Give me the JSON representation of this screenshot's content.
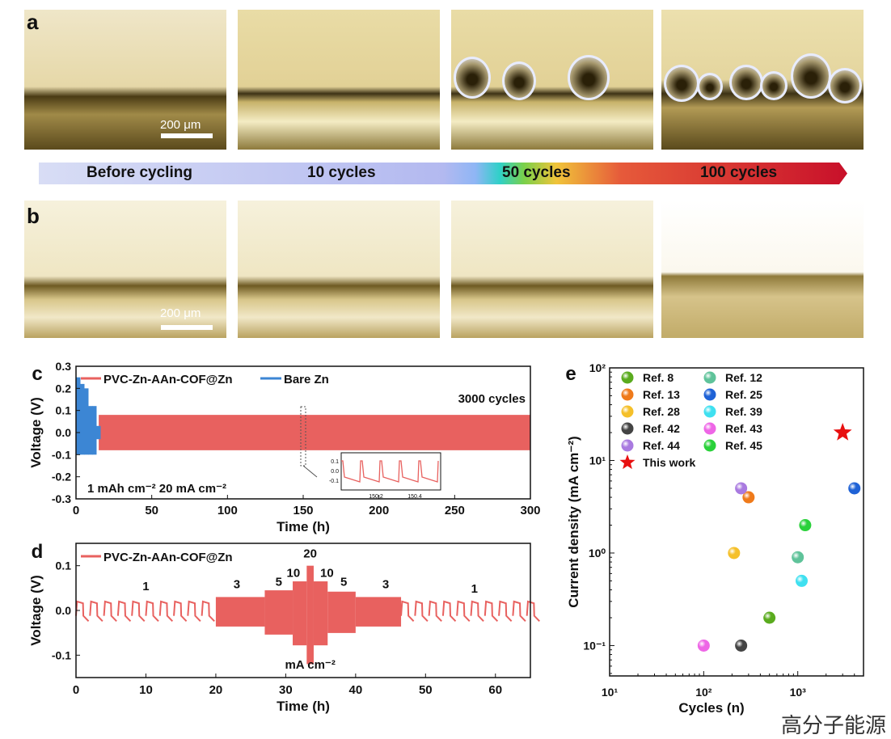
{
  "panel_a": {
    "label": "a",
    "scale": "200 μm"
  },
  "panel_b": {
    "label": "b",
    "scale": "200 μm"
  },
  "arrow": {
    "stages": [
      "Before cycling",
      "10 cycles",
      "50 cycles",
      "100 cycles"
    ]
  },
  "watermark": "高分子能源",
  "chart_data": [
    {
      "panel": "c",
      "type": "line",
      "xlabel": "Time (h)",
      "ylabel": "Voltage (V)",
      "xlim": [
        0,
        300
      ],
      "ylim": [
        -0.3,
        0.3
      ],
      "xticks": [
        "0",
        "50",
        "100",
        "150",
        "200",
        "250",
        "300"
      ],
      "yticks": [
        "-0.3",
        "-0.2",
        "-0.1",
        "0.0",
        "0.1",
        "0.2",
        "0.3"
      ],
      "legend_position": "top-left",
      "series": [
        {
          "name": "PVC-Zn-AAn-COF@Zn",
          "color": "#e8615f",
          "x_range": [
            15,
            300
          ],
          "amplitude": 0.08
        },
        {
          "name": "Bare Zn",
          "color": "#3c86d4",
          "x_range": [
            0,
            16
          ],
          "peaks": [
            0.25,
            0.22,
            0.2,
            0.12,
            0.12,
            0.03
          ]
        }
      ],
      "annotations": [
        "3000 cycles",
        "1 mAh cm⁻²  20 mA cm⁻²"
      ],
      "inset": {
        "yticks": [
          "0.1",
          "0.0",
          "-0.1"
        ],
        "xticks": [
          "150.2",
          "150.4"
        ]
      }
    },
    {
      "panel": "d",
      "type": "line",
      "xlabel": "Time (h)",
      "ylabel": "Voltage (V)",
      "xlim": [
        0,
        65
      ],
      "ylim": [
        -0.15,
        0.15
      ],
      "xticks": [
        "0",
        "10",
        "20",
        "30",
        "40",
        "50",
        "60"
      ],
      "yticks": [
        "-0.1",
        "0.0",
        "0.1"
      ],
      "legend_position": "top-left",
      "series": [
        {
          "name": "PVC-Zn-AAn-COF@Zn",
          "color": "#e8615f"
        }
      ],
      "segments": [
        {
          "start": 0,
          "end": 20,
          "current": "1",
          "amp": 0.02
        },
        {
          "start": 20,
          "end": 27,
          "current": "3",
          "amp": 0.03
        },
        {
          "start": 27,
          "end": 31,
          "current": "5",
          "amp": 0.045
        },
        {
          "start": 31,
          "end": 33,
          "current": "10",
          "amp": 0.065
        },
        {
          "start": 33,
          "end": 34,
          "current": "20",
          "amp": 0.1
        },
        {
          "start": 34,
          "end": 36,
          "current": "10",
          "amp": 0.065
        },
        {
          "start": 36,
          "end": 40,
          "current": "5",
          "amp": 0.042
        },
        {
          "start": 40,
          "end": 46.5,
          "current": "3",
          "amp": 0.03
        },
        {
          "start": 46.5,
          "end": 65,
          "current": "1",
          "amp": 0.02
        }
      ],
      "unit_label": "mA cm⁻²"
    },
    {
      "panel": "e",
      "type": "scatter",
      "xlabel": "Cycles (n)",
      "ylabel": "Current density (mA cm⁻²)",
      "xscale": "log",
      "yscale": "log",
      "xlim": [
        10,
        5000
      ],
      "ylim": [
        0.047,
        100
      ],
      "xticks": [
        "10¹",
        "10²",
        "10³"
      ],
      "yticks": [
        "10⁻¹",
        "10⁰",
        "10¹",
        "10²"
      ],
      "legend_position": "top-left",
      "points": [
        {
          "name": "Ref. 8",
          "x": 500,
          "y": 0.2,
          "color": "#5aab1e"
        },
        {
          "name": "Ref. 12",
          "x": 1000,
          "y": 0.9,
          "color": "#5fc39a"
        },
        {
          "name": "Ref. 13",
          "x": 300,
          "y": 4,
          "color": "#ef7a1a"
        },
        {
          "name": "Ref. 25",
          "x": 4000,
          "y": 5,
          "color": "#1f62d6"
        },
        {
          "name": "Ref. 28",
          "x": 210,
          "y": 1,
          "color": "#f5c02a"
        },
        {
          "name": "Ref. 39",
          "x": 1100,
          "y": 0.5,
          "color": "#3fe0f0"
        },
        {
          "name": "Ref. 42",
          "x": 250,
          "y": 0.1,
          "color": "#444444"
        },
        {
          "name": "Ref. 43",
          "x": 100,
          "y": 0.1,
          "color": "#ee66e6"
        },
        {
          "name": "Ref. 44",
          "x": 250,
          "y": 5,
          "color": "#a97ae0"
        },
        {
          "name": "Ref. 45",
          "x": 1200,
          "y": 2,
          "color": "#2ad13a"
        },
        {
          "name": "This work",
          "x": 3000,
          "y": 20,
          "color": "#e81010",
          "marker": "star"
        }
      ]
    }
  ]
}
